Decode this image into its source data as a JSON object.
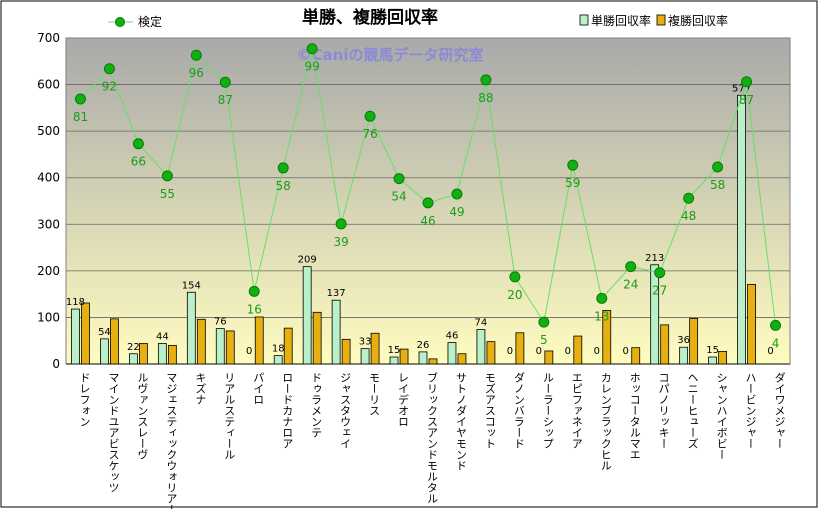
{
  "chart_data": {
    "type": "bar",
    "title": "単勝、複勝回収率",
    "watermark": "©Caniの競馬データ研究室",
    "categories": [
      "ドレフォン",
      "マインドユアビスケッツ",
      "ルヴァンスレーヴ",
      "マジェスティックウォリアー",
      "キズナ",
      "リアルスティール",
      "パイロ",
      "ロードカナロア",
      "ドゥラメンテ",
      "ジャスタウェイ",
      "モーリス",
      "レイデオロ",
      "ブリックスアンドモルタル",
      "サトノダイヤモンド",
      "モズアスコット",
      "ダノンバラード",
      "ルーラーシップ",
      "エピファネイア",
      "カレンブラックヒル",
      "ホッコータルマエ",
      "コパノリッキー",
      "ヘニーヒューズ",
      "シャンハイボビー",
      "ハービンジャー",
      "ダイワメジャー"
    ],
    "series": [
      {
        "name": "単勝回収率",
        "color": "#b9efc9",
        "values": [
          118,
          54,
          22,
          44,
          154,
          76,
          0,
          18,
          209,
          137,
          33,
          15,
          26,
          46,
          74,
          0,
          0,
          0,
          0,
          0,
          213,
          36,
          15,
          577,
          0
        ]
      },
      {
        "name": "複勝回収率",
        "color": "#e6b010",
        "values": [
          131,
          97,
          44,
          40,
          96,
          71,
          101,
          77,
          111,
          53,
          66,
          32,
          11,
          22,
          48,
          67,
          28,
          60,
          115,
          35,
          84,
          98,
          27,
          171,
          0
        ]
      },
      {
        "name": "検定",
        "color": "#22c02a",
        "values": [
          569,
          634,
          473,
          404,
          663,
          605,
          156,
          421,
          677,
          301,
          532,
          398,
          346,
          365,
          610,
          187,
          90,
          427,
          141,
          209,
          196,
          356,
          423,
          606,
          83
        ],
        "labels": [
          81,
          92,
          66,
          55,
          96,
          87,
          16,
          58,
          99,
          39,
          76,
          54,
          46,
          49,
          88,
          20,
          5,
          59,
          13,
          24,
          27,
          48,
          58,
          87,
          4
        ]
      }
    ],
    "ylim": [
      0,
      700
    ],
    "yticks": [
      0,
      100,
      200,
      300,
      400,
      500,
      600,
      700
    ],
    "grid": true,
    "legend": "top",
    "background_gradient": [
      "#a9a9a9",
      "#fffcc0"
    ]
  }
}
